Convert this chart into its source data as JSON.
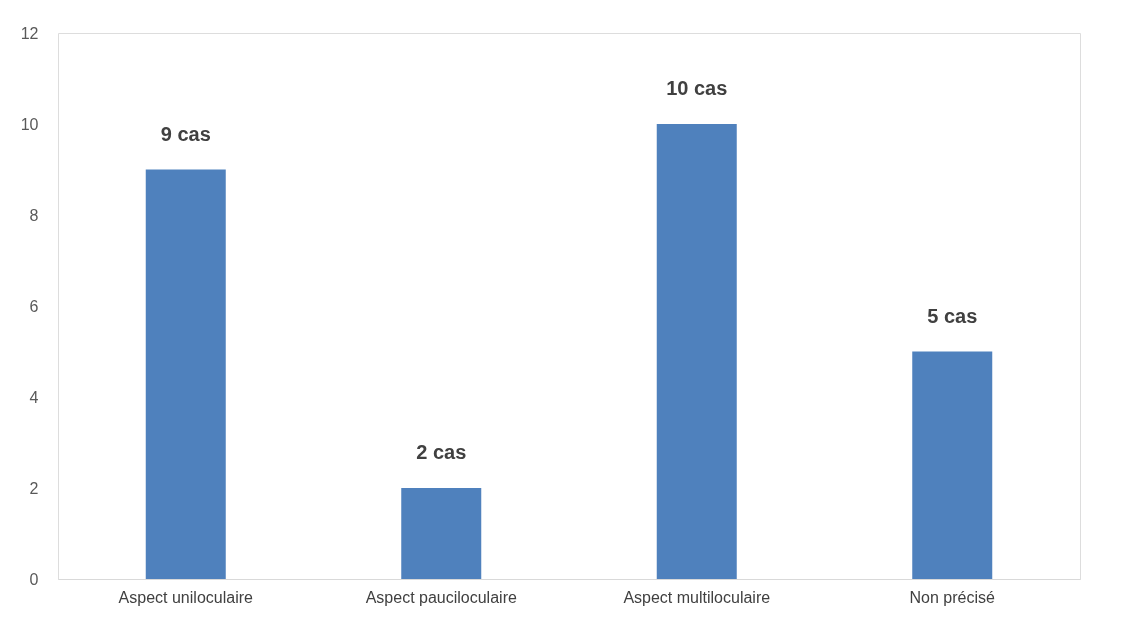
{
  "chart_data": {
    "type": "bar",
    "categories": [
      "Aspect uniloculaire",
      "Aspect pauciloculaire",
      "Aspect multiloculaire",
      "Non précisé"
    ],
    "values": [
      9,
      2,
      10,
      5
    ],
    "value_labels": [
      "9 cas",
      "2 cas",
      "10 cas",
      "5 cas"
    ],
    "color": "#4f81bd",
    "ylim": [
      0,
      12
    ],
    "yticks": [
      0,
      2,
      4,
      6,
      8,
      10,
      12
    ],
    "grid": false
  }
}
